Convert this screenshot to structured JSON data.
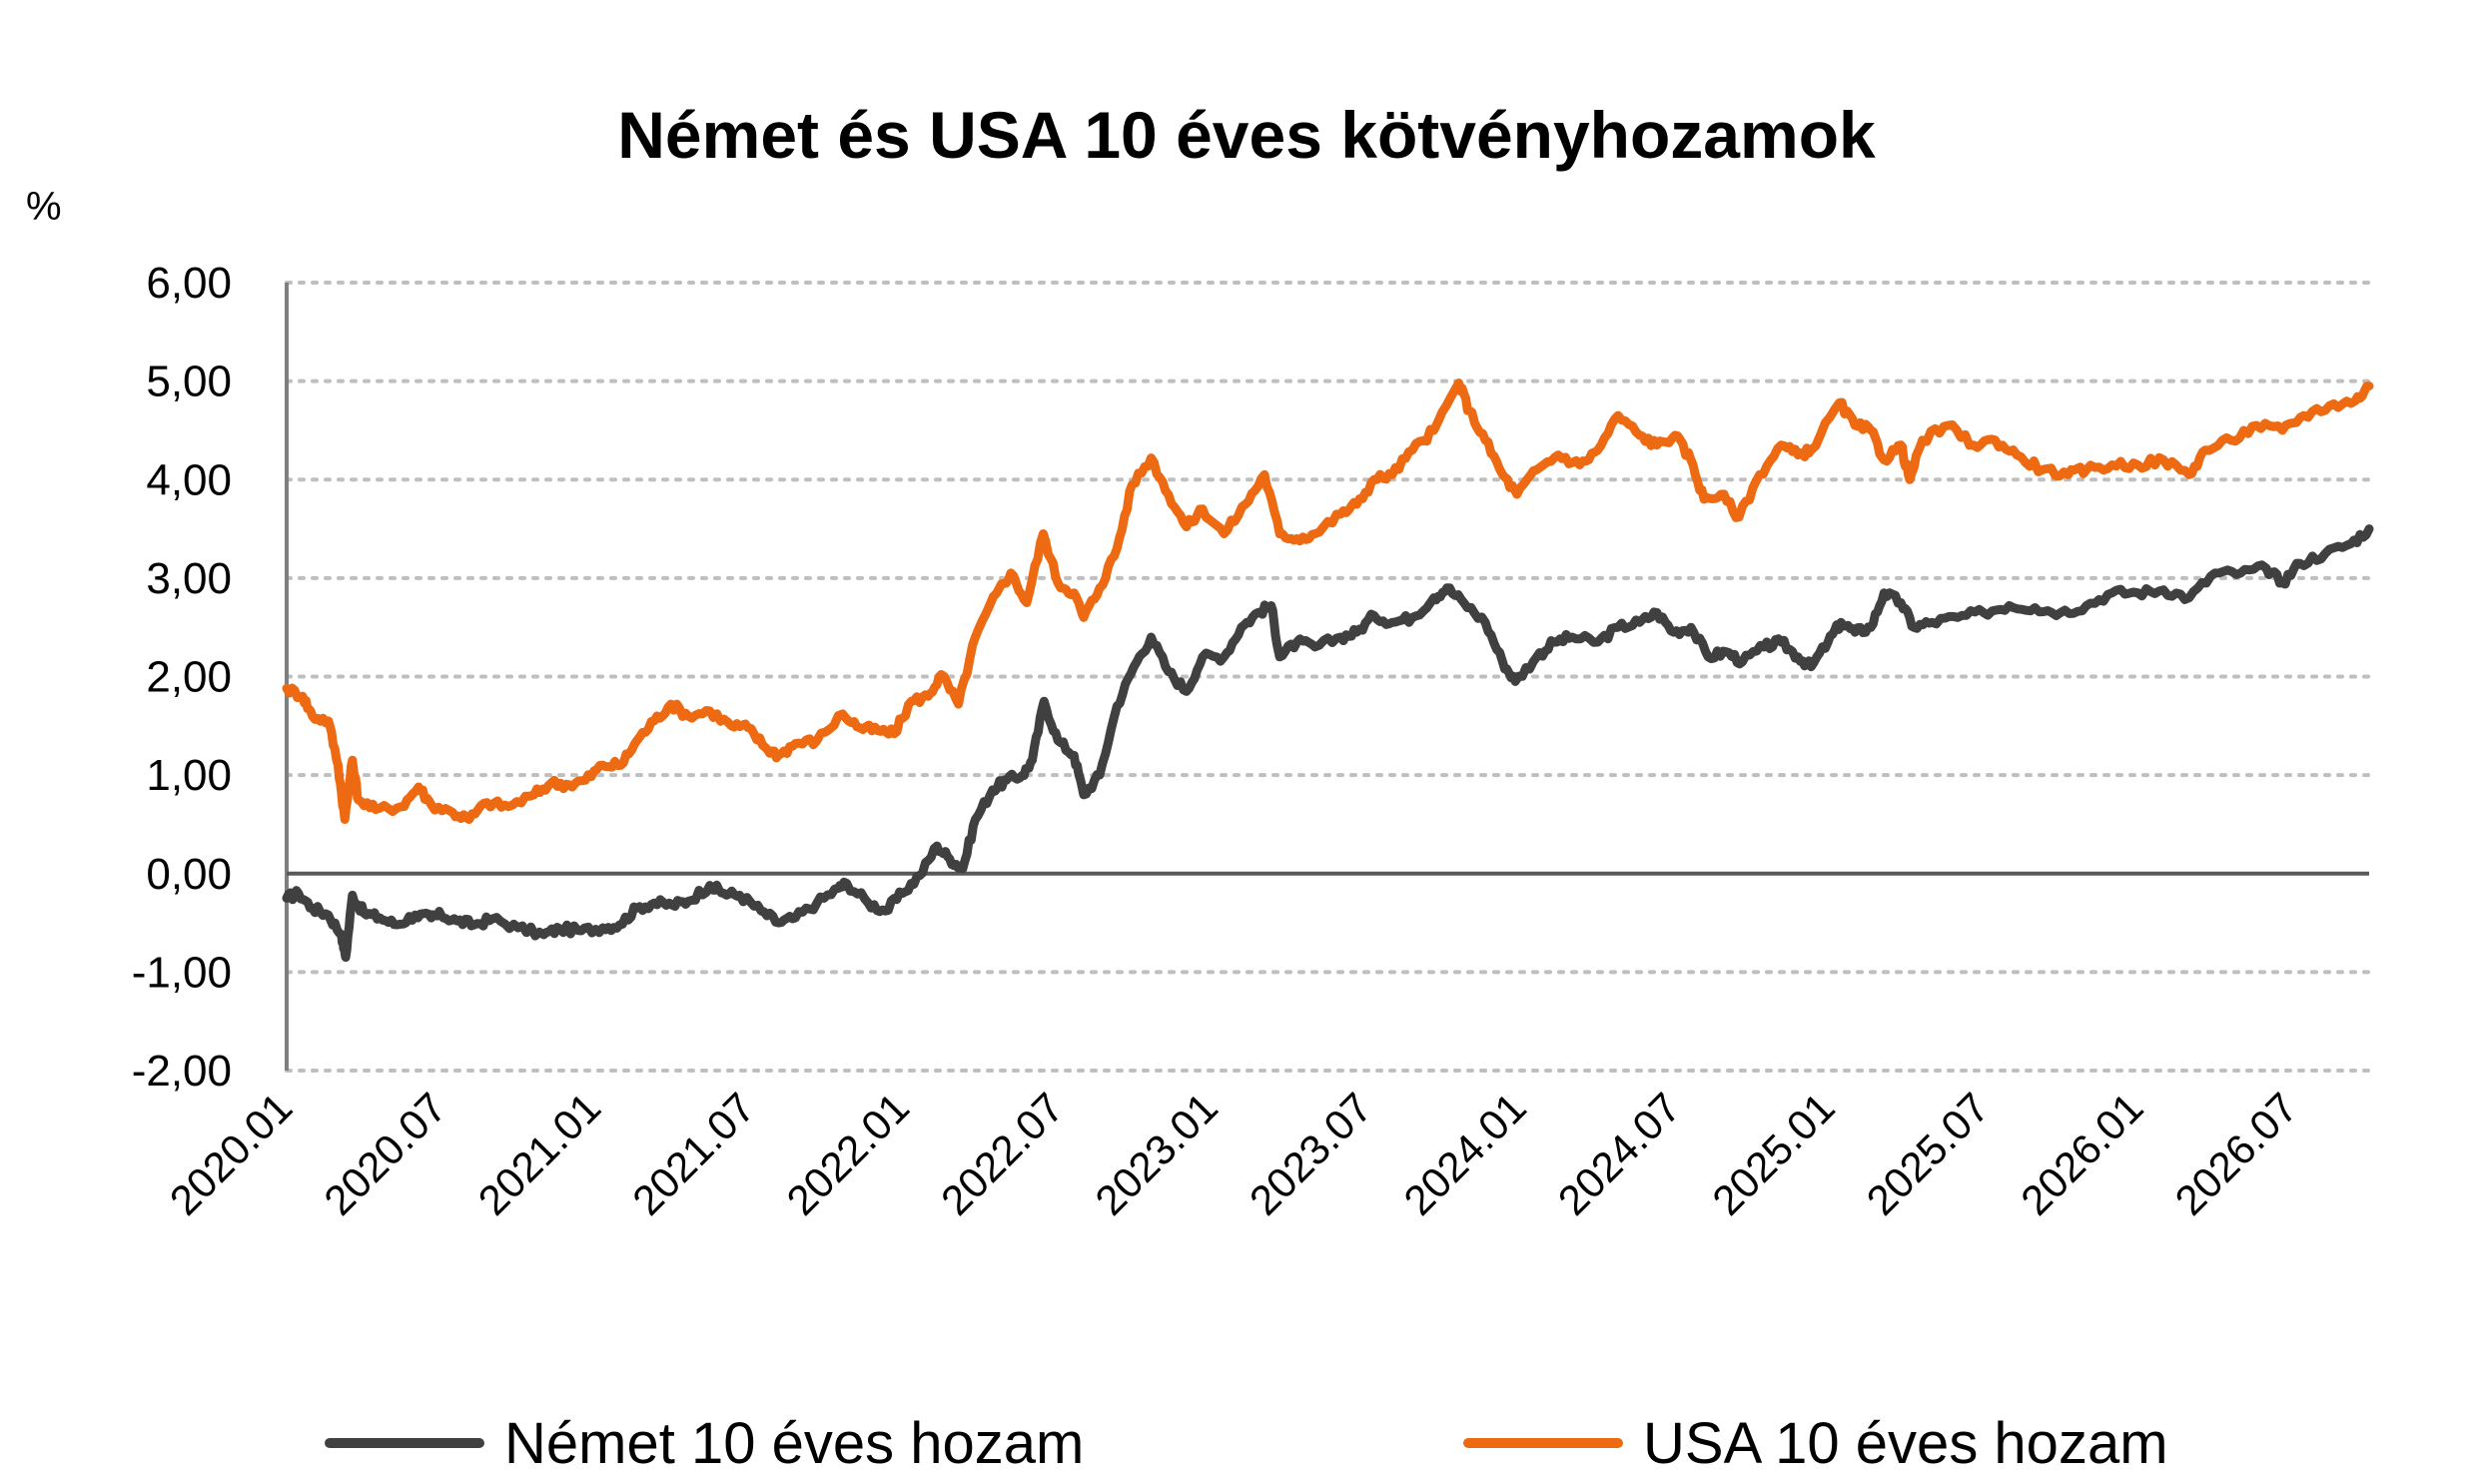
{
  "chart_data": {
    "type": "line",
    "title": "Német és USA 10 éves kötvényhozamok",
    "ylabel": "%",
    "xlabel": "",
    "ylim": [
      -2,
      6
    ],
    "y_ticks": [
      "6,00",
      "5,00",
      "4,00",
      "3,00",
      "2,00",
      "1,00",
      "0,00",
      "-1,00",
      "-2,00"
    ],
    "y_tick_values": [
      6,
      5,
      4,
      3,
      2,
      1,
      0,
      -1,
      -2
    ],
    "x_ticks": [
      "2020.01",
      "2020.07",
      "2021.01",
      "2021.07",
      "2022.01",
      "2022.07",
      "2023.01",
      "2023.07",
      "2024.01",
      "2024.07",
      "2025.01",
      "2025.07",
      "2026.01",
      "2026.07"
    ],
    "x_range": [
      "2020-01",
      "2026-10"
    ],
    "grid": true,
    "legend": "bottom",
    "series": [
      {
        "name": "Német 10 éves hozam",
        "color": "#404040",
        "points": [
          [
            "2020-01-01",
            -0.25
          ],
          [
            "2020-01-15",
            -0.2
          ],
          [
            "2020-02-01",
            -0.35
          ],
          [
            "2020-02-20",
            -0.42
          ],
          [
            "2020-03-05",
            -0.62
          ],
          [
            "2020-03-10",
            -0.85
          ],
          [
            "2020-03-18",
            -0.22
          ],
          [
            "2020-04-01",
            -0.4
          ],
          [
            "2020-04-20",
            -0.45
          ],
          [
            "2020-05-10",
            -0.52
          ],
          [
            "2020-06-01",
            -0.42
          ],
          [
            "2020-06-20",
            -0.45
          ],
          [
            "2020-07-01",
            -0.42
          ],
          [
            "2020-07-20",
            -0.48
          ],
          [
            "2020-08-10",
            -0.52
          ],
          [
            "2020-09-01",
            -0.46
          ],
          [
            "2020-10-01",
            -0.55
          ],
          [
            "2020-11-01",
            -0.62
          ],
          [
            "2020-11-20",
            -0.56
          ],
          [
            "2020-12-15",
            -0.58
          ],
          [
            "2021-01-10",
            -0.55
          ],
          [
            "2021-01-30",
            -0.52
          ],
          [
            "2021-02-20",
            -0.35
          ],
          [
            "2021-03-10",
            -0.3
          ],
          [
            "2021-04-01",
            -0.32
          ],
          [
            "2021-04-20",
            -0.28
          ],
          [
            "2021-05-15",
            -0.12
          ],
          [
            "2021-06-01",
            -0.2
          ],
          [
            "2021-06-20",
            -0.22
          ],
          [
            "2021-07-15",
            -0.38
          ],
          [
            "2021-08-05",
            -0.5
          ],
          [
            "2021-08-25",
            -0.45
          ],
          [
            "2021-09-20",
            -0.3
          ],
          [
            "2021-10-15",
            -0.15
          ],
          [
            "2021-10-25",
            -0.1
          ],
          [
            "2021-11-20",
            -0.3
          ],
          [
            "2021-12-10",
            -0.38
          ],
          [
            "2021-12-30",
            -0.2
          ],
          [
            "2022-01-20",
            -0.02
          ],
          [
            "2022-02-10",
            0.28
          ],
          [
            "2022-02-25",
            0.15
          ],
          [
            "2022-03-10",
            0.05
          ],
          [
            "2022-03-25",
            0.55
          ],
          [
            "2022-04-15",
            0.85
          ],
          [
            "2022-05-01",
            0.95
          ],
          [
            "2022-05-20",
            1.0
          ],
          [
            "2022-06-01",
            1.15
          ],
          [
            "2022-06-15",
            1.75
          ],
          [
            "2022-07-01",
            1.35
          ],
          [
            "2022-07-20",
            1.2
          ],
          [
            "2022-08-01",
            0.8
          ],
          [
            "2022-08-20",
            1.0
          ],
          [
            "2022-09-10",
            1.7
          ],
          [
            "2022-09-30",
            2.1
          ],
          [
            "2022-10-20",
            2.4
          ],
          [
            "2022-11-10",
            2.05
          ],
          [
            "2022-12-01",
            1.85
          ],
          [
            "2022-12-20",
            2.2
          ],
          [
            "2023-01-15",
            2.2
          ],
          [
            "2023-02-05",
            2.5
          ],
          [
            "2023-02-25",
            2.65
          ],
          [
            "2023-03-10",
            2.72
          ],
          [
            "2023-03-20",
            2.2
          ],
          [
            "2023-04-10",
            2.35
          ],
          [
            "2023-05-01",
            2.3
          ],
          [
            "2023-06-01",
            2.4
          ],
          [
            "2023-06-20",
            2.45
          ],
          [
            "2023-07-10",
            2.62
          ],
          [
            "2023-08-01",
            2.55
          ],
          [
            "2023-08-25",
            2.6
          ],
          [
            "2023-09-20",
            2.8
          ],
          [
            "2023-10-05",
            2.9
          ],
          [
            "2023-10-25",
            2.75
          ],
          [
            "2023-11-20",
            2.55
          ],
          [
            "2023-12-10",
            2.15
          ],
          [
            "2023-12-25",
            1.95
          ],
          [
            "2024-01-20",
            2.2
          ],
          [
            "2024-02-10",
            2.35
          ],
          [
            "2024-03-01",
            2.4
          ],
          [
            "2024-04-01",
            2.35
          ],
          [
            "2024-04-25",
            2.5
          ],
          [
            "2024-05-20",
            2.55
          ],
          [
            "2024-06-10",
            2.65
          ],
          [
            "2024-06-30",
            2.45
          ],
          [
            "2024-07-20",
            2.5
          ],
          [
            "2024-08-10",
            2.2
          ],
          [
            "2024-09-01",
            2.25
          ],
          [
            "2024-09-20",
            2.15
          ],
          [
            "2024-10-15",
            2.3
          ],
          [
            "2024-11-05",
            2.35
          ],
          [
            "2024-11-25",
            2.2
          ],
          [
            "2024-12-10",
            2.1
          ],
          [
            "2024-12-30",
            2.35
          ],
          [
            "2025-01-15",
            2.55
          ],
          [
            "2025-02-01",
            2.45
          ],
          [
            "2025-02-20",
            2.5
          ],
          [
            "2025-03-05",
            2.85
          ],
          [
            "2025-03-25",
            2.75
          ],
          [
            "2025-04-10",
            2.5
          ],
          [
            "2025-05-01",
            2.55
          ],
          [
            "2025-06-01",
            2.6
          ],
          [
            "2025-07-01",
            2.65
          ],
          [
            "2025-08-01",
            2.72
          ],
          [
            "2025-09-01",
            2.7
          ],
          [
            "2025-10-01",
            2.65
          ],
          [
            "2025-11-01",
            2.72
          ],
          [
            "2025-12-01",
            2.85
          ],
          [
            "2026-01-01",
            2.85
          ],
          [
            "2026-02-01",
            2.88
          ],
          [
            "2026-03-01",
            2.8
          ],
          [
            "2026-04-01",
            3.05
          ],
          [
            "2026-05-01",
            3.05
          ],
          [
            "2026-06-01",
            3.1
          ],
          [
            "2026-06-20",
            2.95
          ],
          [
            "2026-07-10",
            3.15
          ],
          [
            "2026-08-10",
            3.25
          ],
          [
            "2026-09-10",
            3.35
          ],
          [
            "2026-10-01",
            3.5
          ]
        ]
      },
      {
        "name": "USA 10 éves hozam",
        "color": "#ED6A12",
        "points": [
          [
            "2020-01-01",
            1.88
          ],
          [
            "2020-01-20",
            1.8
          ],
          [
            "2020-02-01",
            1.6
          ],
          [
            "2020-02-20",
            1.55
          ],
          [
            "2020-03-01",
            1.1
          ],
          [
            "2020-03-09",
            0.55
          ],
          [
            "2020-03-18",
            1.15
          ],
          [
            "2020-03-25",
            0.75
          ],
          [
            "2020-04-15",
            0.65
          ],
          [
            "2020-05-15",
            0.68
          ],
          [
            "2020-06-05",
            0.88
          ],
          [
            "2020-06-20",
            0.7
          ],
          [
            "2020-07-15",
            0.62
          ],
          [
            "2020-08-04",
            0.55
          ],
          [
            "2020-08-25",
            0.72
          ],
          [
            "2020-09-20",
            0.68
          ],
          [
            "2020-10-20",
            0.8
          ],
          [
            "2020-11-10",
            0.92
          ],
          [
            "2020-12-01",
            0.9
          ],
          [
            "2020-12-20",
            0.95
          ],
          [
            "2021-01-10",
            1.1
          ],
          [
            "2021-02-01",
            1.1
          ],
          [
            "2021-02-20",
            1.35
          ],
          [
            "2021-03-10",
            1.55
          ],
          [
            "2021-03-30",
            1.72
          ],
          [
            "2021-04-20",
            1.6
          ],
          [
            "2021-05-15",
            1.65
          ],
          [
            "2021-06-10",
            1.5
          ],
          [
            "2021-06-30",
            1.48
          ],
          [
            "2021-07-20",
            1.28
          ],
          [
            "2021-08-05",
            1.2
          ],
          [
            "2021-08-25",
            1.32
          ],
          [
            "2021-09-20",
            1.35
          ],
          [
            "2021-10-20",
            1.62
          ],
          [
            "2021-11-10",
            1.48
          ],
          [
            "2021-12-01",
            1.45
          ],
          [
            "2021-12-20",
            1.42
          ],
          [
            "2022-01-10",
            1.75
          ],
          [
            "2022-01-30",
            1.8
          ],
          [
            "2022-02-15",
            2.02
          ],
          [
            "2022-03-05",
            1.72
          ],
          [
            "2022-03-25",
            2.4
          ],
          [
            "2022-04-20",
            2.85
          ],
          [
            "2022-05-06",
            3.05
          ],
          [
            "2022-05-25",
            2.75
          ],
          [
            "2022-06-14",
            3.45
          ],
          [
            "2022-07-01",
            2.95
          ],
          [
            "2022-07-20",
            2.85
          ],
          [
            "2022-08-01",
            2.6
          ],
          [
            "2022-08-20",
            2.9
          ],
          [
            "2022-09-10",
            3.3
          ],
          [
            "2022-09-28",
            3.95
          ],
          [
            "2022-10-20",
            4.22
          ],
          [
            "2022-11-10",
            3.85
          ],
          [
            "2022-12-01",
            3.52
          ],
          [
            "2022-12-20",
            3.7
          ],
          [
            "2023-01-15",
            3.45
          ],
          [
            "2023-02-10",
            3.75
          ],
          [
            "2023-03-02",
            4.05
          ],
          [
            "2023-03-20",
            3.45
          ],
          [
            "2023-04-10",
            3.4
          ],
          [
            "2023-05-01",
            3.45
          ],
          [
            "2023-06-01",
            3.65
          ],
          [
            "2023-06-20",
            3.75
          ],
          [
            "2023-07-10",
            4.0
          ],
          [
            "2023-08-01",
            4.05
          ],
          [
            "2023-08-25",
            4.3
          ],
          [
            "2023-09-20",
            4.5
          ],
          [
            "2023-10-19",
            4.98
          ],
          [
            "2023-11-01",
            4.7
          ],
          [
            "2023-11-20",
            4.4
          ],
          [
            "2023-12-10",
            4.05
          ],
          [
            "2023-12-27",
            3.85
          ],
          [
            "2024-01-20",
            4.1
          ],
          [
            "2024-02-15",
            4.25
          ],
          [
            "2024-03-10",
            4.15
          ],
          [
            "2024-04-01",
            4.3
          ],
          [
            "2024-04-25",
            4.65
          ],
          [
            "2024-05-20",
            4.45
          ],
          [
            "2024-06-10",
            4.35
          ],
          [
            "2024-07-01",
            4.45
          ],
          [
            "2024-07-20",
            4.2
          ],
          [
            "2024-08-05",
            3.8
          ],
          [
            "2024-08-25",
            3.85
          ],
          [
            "2024-09-16",
            3.62
          ],
          [
            "2024-10-10",
            4.05
          ],
          [
            "2024-11-05",
            4.35
          ],
          [
            "2024-11-25",
            4.25
          ],
          [
            "2024-12-10",
            4.3
          ],
          [
            "2025-01-13",
            4.78
          ],
          [
            "2025-02-01",
            4.55
          ],
          [
            "2025-02-20",
            4.5
          ],
          [
            "2025-03-05",
            4.2
          ],
          [
            "2025-03-25",
            4.35
          ],
          [
            "2025-04-05",
            4.0
          ],
          [
            "2025-04-20",
            4.4
          ],
          [
            "2025-05-20",
            4.55
          ],
          [
            "2025-06-20",
            4.35
          ],
          [
            "2025-07-15",
            4.4
          ],
          [
            "2025-08-10",
            4.25
          ],
          [
            "2025-09-10",
            4.1
          ],
          [
            "2025-10-10",
            4.05
          ],
          [
            "2025-11-01",
            4.1
          ],
          [
            "2025-12-01",
            4.15
          ],
          [
            "2026-01-01",
            4.15
          ],
          [
            "2026-02-01",
            4.2
          ],
          [
            "2026-03-01",
            4.05
          ],
          [
            "2026-03-20",
            4.3
          ],
          [
            "2026-04-20",
            4.4
          ],
          [
            "2026-05-20",
            4.55
          ],
          [
            "2026-06-20",
            4.5
          ],
          [
            "2026-07-15",
            4.65
          ],
          [
            "2026-08-15",
            4.75
          ],
          [
            "2026-09-15",
            4.8
          ],
          [
            "2026-10-01",
            4.95
          ]
        ]
      }
    ]
  }
}
